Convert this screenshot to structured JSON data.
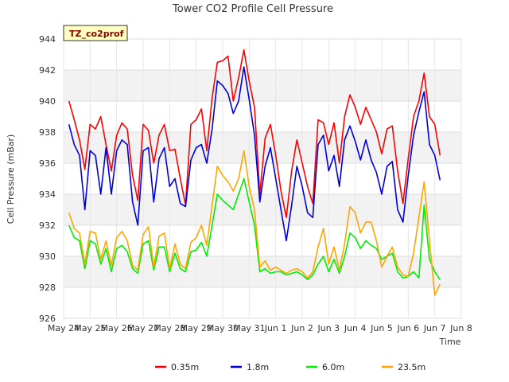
{
  "chart_data": {
    "type": "line",
    "title": "Tower CO2 Profile Cell Pressure",
    "xlabel": "Time",
    "ylabel": "Cell Pressure (mBar)",
    "badge": "TZ_co2prof",
    "ylim": [
      926,
      944
    ],
    "y_ticks": [
      926,
      928,
      930,
      932,
      934,
      936,
      938,
      940,
      942,
      944
    ],
    "x_range_days": [
      0,
      15
    ],
    "x_ticks": [
      "May 24",
      "May 25",
      "May 26",
      "May 27",
      "May 28",
      "May 29",
      "May 30",
      "May 31",
      "Jun 1",
      "Jun 2",
      "Jun 3",
      "Jun 4",
      "Jun 5",
      "Jun 6",
      "Jun 7",
      "Jun 8"
    ],
    "grid": true,
    "legend_position": "bottom",
    "series": [
      {
        "name": "0.35m",
        "color": "#ff0000",
        "x": [
          0.2,
          0.4,
          0.6,
          0.8,
          1.0,
          1.2,
          1.4,
          1.6,
          1.8,
          2.0,
          2.2,
          2.4,
          2.6,
          2.8,
          3.0,
          3.2,
          3.4,
          3.6,
          3.8,
          4.0,
          4.2,
          4.4,
          4.6,
          4.8,
          5.0,
          5.2,
          5.4,
          5.6,
          5.8,
          6.0,
          6.2,
          6.4,
          6.6,
          6.8,
          7.0,
          7.2,
          7.4,
          7.6,
          7.8,
          8.0,
          8.2,
          8.4,
          8.6,
          8.8,
          9.0,
          9.2,
          9.4,
          9.6,
          9.8,
          10.0,
          10.2,
          10.4,
          10.6,
          10.8,
          11.0,
          11.2,
          11.4,
          11.6,
          11.8,
          12.0,
          12.2,
          12.4,
          12.6,
          12.8,
          13.0,
          13.2,
          13.4,
          13.6,
          13.8,
          14.0,
          14.2
        ],
        "y": [
          940.0,
          938.8,
          937.5,
          935.6,
          938.5,
          938.2,
          939.0,
          937.2,
          935.5,
          937.8,
          938.6,
          938.2,
          935.2,
          933.6,
          938.5,
          938.1,
          936.0,
          937.8,
          938.5,
          936.8,
          936.9,
          935.0,
          933.3,
          938.5,
          938.8,
          939.5,
          936.8,
          940.2,
          942.5,
          942.6,
          942.9,
          940.0,
          941.5,
          943.3,
          941.3,
          939.6,
          934.0,
          937.6,
          938.5,
          936.5,
          934.2,
          932.5,
          935.5,
          937.5,
          936.0,
          934.5,
          933.4,
          938.8,
          938.6,
          937.2,
          938.6,
          936.0,
          939.0,
          940.4,
          939.6,
          938.5,
          939.6,
          938.8,
          938.0,
          936.6,
          938.2,
          938.4,
          935.5,
          933.4,
          936.3,
          939.0,
          940.0,
          941.8,
          939.0,
          938.5,
          936.5
        ]
      },
      {
        "name": "1.8m",
        "color": "#0000dd",
        "x": [
          0.2,
          0.4,
          0.6,
          0.8,
          1.0,
          1.2,
          1.4,
          1.6,
          1.8,
          2.0,
          2.2,
          2.4,
          2.6,
          2.8,
          3.0,
          3.2,
          3.4,
          3.6,
          3.8,
          4.0,
          4.2,
          4.4,
          4.6,
          4.8,
          5.0,
          5.2,
          5.4,
          5.6,
          5.8,
          6.0,
          6.2,
          6.4,
          6.6,
          6.8,
          7.0,
          7.2,
          7.4,
          7.6,
          7.8,
          8.0,
          8.2,
          8.4,
          8.6,
          8.8,
          9.0,
          9.2,
          9.4,
          9.6,
          9.8,
          10.0,
          10.2,
          10.4,
          10.6,
          10.8,
          11.0,
          11.2,
          11.4,
          11.6,
          11.8,
          12.0,
          12.2,
          12.4,
          12.6,
          12.8,
          13.0,
          13.2,
          13.4,
          13.6,
          13.8,
          14.0,
          14.2
        ],
        "y": [
          938.5,
          937.2,
          936.5,
          933.0,
          936.8,
          936.5,
          934.0,
          937.0,
          934.0,
          936.8,
          937.5,
          937.2,
          933.5,
          932.0,
          936.8,
          937.0,
          933.5,
          936.3,
          937.0,
          934.5,
          935.0,
          933.4,
          933.2,
          936.2,
          937.0,
          937.2,
          936.0,
          938.2,
          941.3,
          941.0,
          940.5,
          939.2,
          940.0,
          942.2,
          940.1,
          937.8,
          933.5,
          935.8,
          937.0,
          935.0,
          933.0,
          931.0,
          933.3,
          935.8,
          934.5,
          932.8,
          932.5,
          937.2,
          937.8,
          935.5,
          936.5,
          934.5,
          937.5,
          938.4,
          937.4,
          936.2,
          937.5,
          936.2,
          935.4,
          934.0,
          935.8,
          936.1,
          933.0,
          932.2,
          935.2,
          937.8,
          939.3,
          940.6,
          937.2,
          936.5,
          934.9
        ]
      },
      {
        "name": "6.0m",
        "color": "#00ee00",
        "x": [
          0.2,
          0.4,
          0.6,
          0.8,
          1.0,
          1.2,
          1.4,
          1.6,
          1.8,
          2.0,
          2.2,
          2.4,
          2.6,
          2.8,
          3.0,
          3.2,
          3.4,
          3.6,
          3.8,
          4.0,
          4.2,
          4.4,
          4.6,
          4.8,
          5.0,
          5.2,
          5.4,
          5.6,
          5.8,
          6.0,
          6.2,
          6.4,
          6.6,
          6.8,
          7.0,
          7.2,
          7.4,
          7.6,
          7.8,
          8.0,
          8.2,
          8.4,
          8.6,
          8.8,
          9.0,
          9.2,
          9.4,
          9.6,
          9.8,
          10.0,
          10.2,
          10.4,
          10.6,
          10.8,
          11.0,
          11.2,
          11.4,
          11.6,
          11.8,
          12.0,
          12.2,
          12.4,
          12.6,
          12.8,
          13.0,
          13.2,
          13.4,
          13.6,
          13.8,
          14.0,
          14.2
        ],
        "y": [
          932.0,
          931.2,
          931.0,
          929.2,
          931.0,
          930.8,
          929.5,
          930.5,
          929.0,
          930.5,
          930.7,
          930.3,
          929.2,
          928.9,
          930.8,
          931.0,
          929.1,
          930.6,
          930.6,
          929.0,
          930.2,
          929.2,
          929.0,
          930.3,
          930.4,
          930.9,
          930.0,
          932.0,
          934.0,
          933.6,
          933.3,
          933.0,
          934.0,
          935.0,
          933.5,
          932.0,
          929.0,
          929.2,
          928.9,
          929.0,
          929.0,
          928.8,
          928.9,
          929.0,
          928.8,
          928.5,
          928.8,
          929.5,
          930.0,
          929.0,
          929.8,
          928.9,
          930.0,
          931.5,
          931.2,
          930.5,
          931.0,
          930.7,
          930.5,
          929.8,
          930.0,
          930.2,
          929.0,
          928.6,
          928.7,
          929.0,
          928.6,
          933.3,
          929.8,
          929.0,
          928.5
        ]
      },
      {
        "name": "23.5m",
        "color": "#ffa500",
        "x": [
          0.2,
          0.4,
          0.6,
          0.8,
          1.0,
          1.2,
          1.4,
          1.6,
          1.8,
          2.0,
          2.2,
          2.4,
          2.6,
          2.8,
          3.0,
          3.2,
          3.4,
          3.6,
          3.8,
          4.0,
          4.2,
          4.4,
          4.6,
          4.8,
          5.0,
          5.2,
          5.4,
          5.6,
          5.8,
          6.0,
          6.2,
          6.4,
          6.6,
          6.8,
          7.0,
          7.2,
          7.4,
          7.6,
          7.8,
          8.0,
          8.2,
          8.4,
          8.6,
          8.8,
          9.0,
          9.2,
          9.4,
          9.6,
          9.8,
          10.0,
          10.2,
          10.4,
          10.6,
          10.8,
          11.0,
          11.2,
          11.4,
          11.6,
          11.8,
          12.0,
          12.2,
          12.4,
          12.6,
          12.8,
          13.0,
          13.2,
          13.4,
          13.6,
          13.8,
          14.0,
          14.2
        ],
        "y": [
          932.8,
          931.8,
          931.5,
          929.5,
          931.6,
          931.5,
          929.8,
          931.0,
          929.4,
          931.2,
          931.6,
          931.0,
          929.4,
          929.1,
          931.4,
          931.9,
          929.3,
          931.3,
          931.5,
          929.2,
          930.8,
          929.5,
          929.2,
          930.9,
          931.2,
          932.0,
          930.7,
          933.3,
          935.8,
          935.2,
          934.8,
          934.2,
          935.0,
          936.8,
          934.5,
          933.0,
          929.3,
          929.7,
          929.1,
          929.3,
          929.1,
          928.9,
          929.1,
          929.2,
          929.0,
          928.6,
          929.0,
          930.6,
          931.8,
          929.5,
          930.6,
          929.1,
          930.8,
          933.2,
          932.8,
          931.5,
          932.2,
          932.2,
          931.0,
          929.3,
          930.0,
          930.6,
          929.3,
          928.8,
          928.7,
          930.2,
          932.5,
          934.8,
          931.0,
          927.5,
          928.2
        ]
      }
    ]
  }
}
